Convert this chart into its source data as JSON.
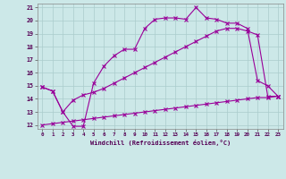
{
  "title": "",
  "xlabel": "Windchill (Refroidissement éolien,°C)",
  "xlim": [
    -0.5,
    23.5
  ],
  "ylim": [
    11.7,
    21.3
  ],
  "xticks": [
    0,
    1,
    2,
    3,
    4,
    5,
    6,
    7,
    8,
    9,
    10,
    11,
    12,
    13,
    14,
    15,
    16,
    17,
    18,
    19,
    20,
    21,
    22,
    23
  ],
  "yticks": [
    12,
    13,
    14,
    15,
    16,
    17,
    18,
    19,
    20,
    21
  ],
  "bg_color": "#cce8e8",
  "line_color": "#990099",
  "grid_color": "#aacccc",
  "line1_x": [
    0,
    1,
    2,
    3,
    4,
    5,
    6,
    7,
    8,
    9,
    10,
    11,
    12,
    13,
    14,
    15,
    16,
    17,
    18,
    19,
    20,
    21,
    22,
    23
  ],
  "line1_y": [
    14.9,
    14.6,
    13.0,
    11.9,
    11.9,
    15.2,
    16.5,
    17.3,
    17.8,
    17.8,
    19.4,
    20.1,
    20.2,
    20.2,
    20.1,
    21.0,
    20.2,
    20.1,
    19.8,
    19.8,
    19.4,
    15.4,
    15.0,
    14.2
  ],
  "line2_x": [
    0,
    1,
    2,
    3,
    4,
    5,
    6,
    7,
    8,
    9,
    10,
    11,
    12,
    13,
    14,
    15,
    16,
    17,
    18,
    19,
    20,
    21,
    22,
    23
  ],
  "line2_y": [
    14.9,
    14.6,
    13.0,
    13.9,
    14.3,
    14.5,
    14.8,
    15.2,
    15.6,
    16.0,
    16.4,
    16.8,
    17.2,
    17.6,
    18.0,
    18.4,
    18.8,
    19.2,
    19.4,
    19.4,
    19.2,
    18.9,
    14.2,
    14.2
  ],
  "line3_x": [
    0,
    1,
    2,
    3,
    4,
    5,
    6,
    7,
    8,
    9,
    10,
    11,
    12,
    13,
    14,
    15,
    16,
    17,
    18,
    19,
    20,
    21,
    22,
    23
  ],
  "line3_y": [
    12.0,
    12.1,
    12.2,
    12.3,
    12.4,
    12.5,
    12.6,
    12.7,
    12.8,
    12.9,
    13.0,
    13.1,
    13.2,
    13.3,
    13.4,
    13.5,
    13.6,
    13.7,
    13.8,
    13.9,
    14.0,
    14.1,
    14.1,
    14.2
  ]
}
